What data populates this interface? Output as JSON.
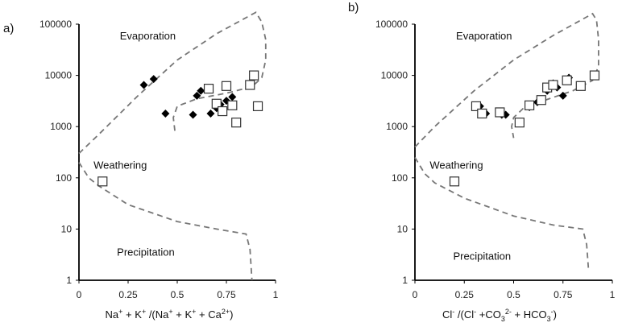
{
  "chart_data": [
    {
      "type": "scatter",
      "panel_label": "a)",
      "title": "",
      "xlabel": {
        "parts": [
          {
            "t": "Na"
          },
          {
            "t": "+",
            "s": "sup"
          },
          {
            "t": " + K"
          },
          {
            "t": "+",
            "s": "sup"
          },
          {
            "t": " /(Na"
          },
          {
            "t": "+",
            "s": "sup"
          },
          {
            "t": " + K"
          },
          {
            "t": "+",
            "s": "sup"
          },
          {
            "t": " + Ca"
          },
          {
            "t": "2+",
            "s": "sup"
          },
          {
            "t": ")"
          }
        ]
      },
      "ylabel": "",
      "xlim": [
        0,
        1
      ],
      "ylim": [
        1,
        100000
      ],
      "yscale": "log",
      "x_ticks": [
        "0",
        "0.25",
        "0.5",
        "0.75",
        "1"
      ],
      "x_tick_values": [
        0,
        0.25,
        0.5,
        0.75,
        1
      ],
      "y_ticks": [
        "1",
        "10",
        "100",
        "1000",
        "10000",
        "100000"
      ],
      "y_tick_values": [
        1,
        10,
        100,
        1000,
        10000,
        100000
      ],
      "grid": false,
      "annotations": [
        {
          "text": "Evaporation",
          "x": 0.35,
          "y": 50000
        },
        {
          "text": "Weathering",
          "x": 0.21,
          "y": 150
        },
        {
          "text": "Precipitation",
          "x": 0.34,
          "y": 3
        }
      ],
      "boundary_upper": [
        [
          0.0,
          300
        ],
        [
          0.1,
          700
        ],
        [
          0.3,
          4000
        ],
        [
          0.5,
          20000
        ],
        [
          0.7,
          65000
        ],
        [
          0.9,
          170000
        ],
        [
          0.93,
          110000
        ],
        [
          0.95,
          50000
        ],
        [
          0.95,
          20000
        ],
        [
          0.93,
          9000
        ],
        [
          0.88,
          6000
        ],
        [
          0.75,
          4500
        ],
        [
          0.6,
          3500
        ],
        [
          0.5,
          2500
        ],
        [
          0.48,
          1500
        ],
        [
          0.49,
          700
        ]
      ],
      "boundary_lower": [
        [
          0.0,
          200
        ],
        [
          0.05,
          100
        ],
        [
          0.1,
          70
        ],
        [
          0.25,
          30
        ],
        [
          0.5,
          14
        ],
        [
          0.7,
          10
        ],
        [
          0.85,
          8
        ],
        [
          0.87,
          4
        ],
        [
          0.88,
          1
        ]
      ],
      "series": [
        {
          "marker": "diamond",
          "x": [
            0.33,
            0.38,
            0.44,
            0.58,
            0.6,
            0.62,
            0.67,
            0.7,
            0.72,
            0.75,
            0.78
          ],
          "y": [
            6500,
            8500,
            1800,
            1700,
            4000,
            5000,
            1800,
            2300,
            2700,
            3200,
            3800
          ]
        },
        {
          "marker": "square",
          "x": [
            0.12,
            0.66,
            0.7,
            0.73,
            0.75,
            0.78,
            0.8,
            0.87,
            0.89,
            0.91
          ],
          "y": [
            85,
            5500,
            2800,
            2000,
            6200,
            2600,
            1200,
            6500,
            10000,
            2500
          ]
        }
      ]
    },
    {
      "type": "scatter",
      "panel_label": "b)",
      "title": "",
      "xlabel": {
        "parts": [
          {
            "t": "Cl"
          },
          {
            "t": "-",
            "s": "sup"
          },
          {
            "t": " /(Cl"
          },
          {
            "t": "-",
            "s": "sup"
          },
          {
            "t": " +CO"
          },
          {
            "t": "3",
            "s": "sub"
          },
          {
            "t": "2-",
            "s": "sup"
          },
          {
            "t": " + HCO"
          },
          {
            "t": "3",
            "s": "sub"
          },
          {
            "t": "-",
            "s": "sup"
          },
          {
            "t": ")"
          }
        ]
      },
      "ylabel": "",
      "xlim": [
        0,
        1
      ],
      "ylim": [
        1,
        100000
      ],
      "yscale": "log",
      "x_ticks": [
        "0",
        "0.25",
        "0.5",
        "0.75",
        "1"
      ],
      "x_tick_values": [
        0,
        0.25,
        0.5,
        0.75,
        1
      ],
      "y_ticks": [
        "1",
        "10",
        "100",
        "1000",
        "10000",
        "100000"
      ],
      "y_tick_values": [
        1,
        10,
        100,
        1000,
        10000,
        100000
      ],
      "grid": false,
      "annotations": [
        {
          "text": "Evaporation",
          "x": 0.35,
          "y": 50000
        },
        {
          "text": "Weathering",
          "x": 0.21,
          "y": 150
        },
        {
          "text": "Precipitation",
          "x": 0.34,
          "y": 2.5
        }
      ],
      "boundary_upper": [
        [
          0.0,
          400
        ],
        [
          0.1,
          1000
        ],
        [
          0.3,
          5000
        ],
        [
          0.5,
          20000
        ],
        [
          0.7,
          60000
        ],
        [
          0.9,
          160000
        ],
        [
          0.92,
          120000
        ],
        [
          0.93,
          50000
        ],
        [
          0.93,
          15000
        ],
        [
          0.9,
          8000
        ],
        [
          0.8,
          5000
        ],
        [
          0.68,
          3500
        ],
        [
          0.55,
          2300
        ],
        [
          0.5,
          1500
        ],
        [
          0.49,
          1000
        ],
        [
          0.5,
          600
        ]
      ],
      "boundary_lower": [
        [
          0.0,
          250
        ],
        [
          0.05,
          120
        ],
        [
          0.1,
          80
        ],
        [
          0.25,
          40
        ],
        [
          0.5,
          18
        ],
        [
          0.7,
          12
        ],
        [
          0.85,
          10
        ],
        [
          0.87,
          5
        ],
        [
          0.88,
          1.5
        ]
      ],
      "series": [
        {
          "marker": "diamond",
          "x": [
            0.33,
            0.36,
            0.44,
            0.46,
            0.58,
            0.62,
            0.67,
            0.7,
            0.72,
            0.75,
            0.78
          ],
          "y": [
            2500,
            1800,
            1700,
            1700,
            2400,
            3000,
            5000,
            7000,
            5800,
            4000,
            9000
          ]
        },
        {
          "marker": "square",
          "x": [
            0.2,
            0.31,
            0.34,
            0.43,
            0.53,
            0.58,
            0.64,
            0.67,
            0.7,
            0.77,
            0.84,
            0.91
          ],
          "y": [
            85,
            2500,
            1800,
            1900,
            1200,
            2600,
            3300,
            5800,
            6500,
            8000,
            6200,
            10000
          ]
        }
      ]
    }
  ]
}
